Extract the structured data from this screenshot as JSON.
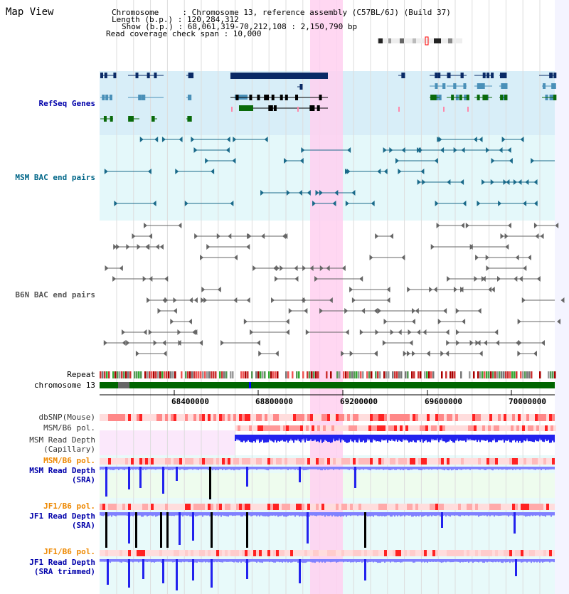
{
  "title": "Map View",
  "header": {
    "chromosome_line": "Chromosome     : Chromosome 13, reference assembly (C57BL/6J) (Build 37)",
    "length_line": "Length (b.p.) : 120,284,312",
    "show_line": "Show (b.p.) : 68,061,319-70,212,108 : 2,150,790 bp",
    "coverage_line": "Read coverage check span : 10,000"
  },
  "tracks": {
    "refseq": "RefSeq Genes",
    "msm_bac": "MSM BAC end pairs",
    "b6n_bac": "B6N BAC end pairs",
    "repeat": "Repeat",
    "chromosome": "chromosome 13",
    "dbsnp": "dbSNP(Mouse)",
    "msm_b6_pol_1": "MSM/B6 pol.",
    "msm_depth_cap_1": "MSM Read Depth",
    "msm_depth_cap_2": "(Capillary)",
    "msm_b6_pol_2": "MSM/B6 pol.",
    "msm_depth_sra_1": "MSM Read Depth",
    "msm_depth_sra_2": "(SRA)",
    "jf1_b6_pol_1": "JF1/B6 pol.",
    "jf1_depth_sra_1": "JF1 Read Depth",
    "jf1_depth_sra_2": "(SRA)",
    "jf1_b6_pol_2": "JF1/B6 pol.",
    "jf1_depth_trim_1": "JF1 Read Depth",
    "jf1_depth_trim_2": "(SRA trimmed)"
  },
  "axis": {
    "ticks": [
      "68400000",
      "68800000",
      "69200000",
      "69600000",
      "70000000"
    ]
  },
  "colors": {
    "refseq_navy": "#0a2a66",
    "refseq_light": "#4a90b8",
    "refseq_green": "#0a6a0a",
    "msm_bac": "#1a6a8a",
    "b6n_bac": "#666666",
    "depth_blue": "#3333ff",
    "depth_light": "#8080ff",
    "highlight": "#ffd0f0",
    "label_blue": "#0000aa",
    "label_teal": "#006688",
    "label_orange": "#ee8800"
  }
}
